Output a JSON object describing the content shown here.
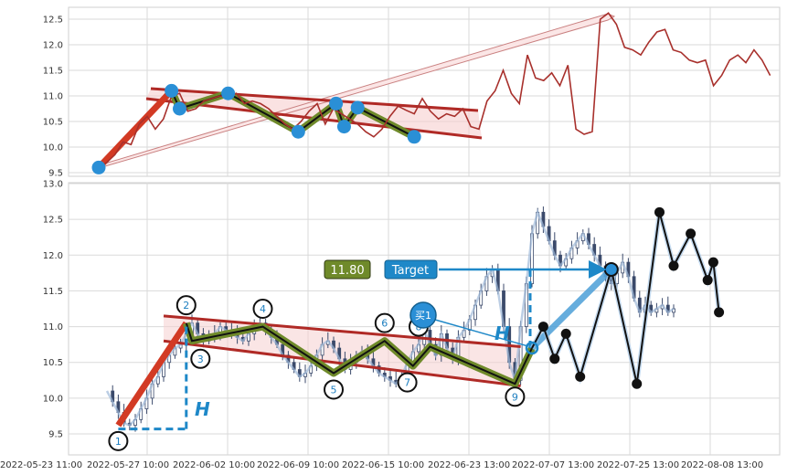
{
  "chart_data": [
    {
      "type": "line",
      "panel": "top",
      "ylim": [
        9.45,
        12.65
      ],
      "y_ticks": [
        "9.5",
        "10.0",
        "10.5",
        "11.0",
        "11.5",
        "12.0",
        "12.5"
      ],
      "grid": true,
      "series_color": "#a8302c",
      "series": [
        {
          "x": [
            0,
            3,
            6,
            9,
            12,
            15,
            18,
            21,
            24,
            27,
            30,
            33,
            36,
            39,
            42,
            45,
            48,
            51,
            54,
            57,
            60,
            63,
            66,
            69,
            72,
            75,
            78,
            81,
            84,
            87,
            90,
            93,
            96,
            99,
            102,
            105,
            108,
            111,
            114,
            117,
            120,
            123,
            126,
            129,
            132,
            135,
            138,
            141,
            144,
            147,
            150,
            153,
            156,
            159,
            162,
            165,
            168,
            171,
            174,
            177,
            180,
            183,
            186,
            189,
            192,
            195,
            198,
            201,
            204,
            207,
            210,
            213,
            216,
            219,
            222,
            225,
            228,
            231,
            234,
            237,
            240,
            243,
            246,
            249
          ],
          "values": [
            9.6,
            9.7,
            9.85,
            10.1,
            10.05,
            10.45,
            10.6,
            10.35,
            10.55,
            11.0,
            11.05,
            10.7,
            10.75,
            10.9,
            10.95,
            11.0,
            10.95,
            11.05,
            10.85,
            10.9,
            10.85,
            10.75,
            10.6,
            10.45,
            10.35,
            10.5,
            10.7,
            10.85,
            10.45,
            10.75,
            10.65,
            10.55,
            10.45,
            10.3,
            10.2,
            10.35,
            10.6,
            10.8,
            10.72,
            10.65,
            10.95,
            10.7,
            10.55,
            10.65,
            10.6,
            10.75,
            10.4,
            10.35,
            10.9,
            11.1,
            11.5,
            11.05,
            10.85,
            11.8,
            11.35,
            11.3,
            11.45,
            11.2,
            11.6,
            10.35,
            10.25,
            10.3,
            12.5,
            12.62,
            12.4,
            11.95,
            11.9,
            11.8,
            12.05,
            12.25,
            12.3,
            11.9,
            11.85,
            11.7,
            11.65,
            11.7,
            11.2,
            11.4,
            11.7,
            11.8,
            11.65,
            11.9,
            11.7,
            11.4
          ]
        }
      ],
      "markers": [
        {
          "x": 0,
          "y": 9.6
        },
        {
          "x": 27,
          "y": 11.1
        },
        {
          "x": 30,
          "y": 10.75
        },
        {
          "x": 48,
          "y": 11.05
        },
        {
          "x": 74,
          "y": 10.3
        },
        {
          "x": 88,
          "y": 10.85
        },
        {
          "x": 91,
          "y": 10.4
        },
        {
          "x": 96,
          "y": 10.77
        },
        {
          "x": 117,
          "y": 10.2
        }
      ]
    },
    {
      "type": "candlestick",
      "panel": "bottom",
      "ylim": [
        9.3,
        13.0
      ],
      "y_ticks": [
        "9.5",
        "10.0",
        "10.5",
        "11.0",
        "11.5",
        "12.0",
        "12.5",
        "13.0"
      ],
      "x_ticks": [
        "2022-05-23 11:00",
        "2022-05-27 10:00",
        "2022-06-02 10:00",
        "2022-06-09 10:00",
        "2022-06-15 10:00",
        "2022-06-23 13:00",
        "2022-07-07 13:00",
        "2022-07-25 13:00",
        "2022-08-08 13:00"
      ],
      "grid": true,
      "close_line": {
        "x": [
          0,
          2,
          4,
          6,
          8,
          10,
          12,
          14,
          16,
          18,
          20,
          22,
          24,
          26,
          28,
          30,
          32,
          34,
          36,
          38,
          40,
          42,
          44,
          46,
          48,
          50,
          52,
          54,
          56,
          58,
          60,
          62,
          64,
          66,
          68,
          70,
          72,
          74,
          76,
          78,
          80,
          82,
          84,
          86,
          88,
          90,
          92,
          94,
          96,
          98,
          100,
          102,
          104,
          106,
          108,
          110,
          112,
          114,
          116,
          118,
          120,
          122,
          124,
          126,
          128,
          130,
          132,
          134,
          136,
          138,
          140,
          142,
          144,
          146,
          148,
          150,
          152,
          154,
          156,
          158,
          160,
          162,
          164,
          166,
          168,
          170,
          172,
          174,
          176,
          178,
          180,
          182,
          184,
          186,
          188,
          190,
          192,
          194,
          196,
          198,
          200
        ],
        "values": [
          10.1,
          9.95,
          9.8,
          9.65,
          9.62,
          9.7,
          9.85,
          10.0,
          10.2,
          10.3,
          10.5,
          10.6,
          10.7,
          10.75,
          10.9,
          11.05,
          10.9,
          10.8,
          10.85,
          10.9,
          11.0,
          10.95,
          10.9,
          10.85,
          10.8,
          10.9,
          11.0,
          11.05,
          10.95,
          10.85,
          10.75,
          10.6,
          10.5,
          10.4,
          10.3,
          10.35,
          10.45,
          10.6,
          10.75,
          10.8,
          10.7,
          10.55,
          10.4,
          10.5,
          10.6,
          10.65,
          10.55,
          10.45,
          10.35,
          10.3,
          10.25,
          10.2,
          10.3,
          10.5,
          10.65,
          10.75,
          10.95,
          10.75,
          10.6,
          10.9,
          10.7,
          10.55,
          10.85,
          10.95,
          11.1,
          11.3,
          11.5,
          11.7,
          11.8,
          11.5,
          11.0,
          10.5,
          10.25,
          11.0,
          11.6,
          12.3,
          12.6,
          12.4,
          12.2,
          12.0,
          11.85,
          11.95,
          12.1,
          12.2,
          12.3,
          12.15,
          12.0,
          11.85,
          11.7,
          11.6,
          11.75,
          11.9,
          11.7,
          11.4,
          11.2,
          11.3,
          11.2,
          11.25,
          11.3,
          11.2,
          11.25
        ]
      },
      "legs_red": [
        {
          "x": 4,
          "y": 9.62
        },
        {
          "x": 28,
          "y": 11.05
        }
      ],
      "channel": {
        "upper": [
          {
            "x": 20,
            "y": 11.15
          },
          {
            "x": 146,
            "y": 10.72
          }
        ],
        "lower": [
          {
            "x": 20,
            "y": 10.8
          },
          {
            "x": 146,
            "y": 10.17
          }
        ]
      },
      "wave": [
        {
          "x": 28,
          "y": 11.05
        },
        {
          "x": 30,
          "y": 10.8
        },
        {
          "x": 55,
          "y": 11.0
        },
        {
          "x": 80,
          "y": 10.35
        },
        {
          "x": 98,
          "y": 10.8
        },
        {
          "x": 108,
          "y": 10.45
        },
        {
          "x": 114,
          "y": 10.72
        },
        {
          "x": 144,
          "y": 10.2
        },
        {
          "x": 150,
          "y": 10.7
        }
      ],
      "points": [
        {
          "label": "1",
          "x": 4,
          "y": 9.62,
          "lx": 4,
          "ly": 9.4
        },
        {
          "label": "2",
          "x": 28,
          "y": 11.05,
          "lx": 28,
          "ly": 11.3
        },
        {
          "label": "3",
          "x": 30,
          "y": 10.8,
          "lx": 33,
          "ly": 10.55
        },
        {
          "label": "4",
          "x": 55,
          "y": 11.0,
          "lx": 55,
          "ly": 11.25
        },
        {
          "label": "5",
          "x": 80,
          "y": 10.35,
          "lx": 80,
          "ly": 10.12
        },
        {
          "label": "6",
          "x": 98,
          "y": 10.8,
          "lx": 98,
          "ly": 11.05
        },
        {
          "label": "7",
          "x": 108,
          "y": 10.45,
          "lx": 106,
          "ly": 10.22
        },
        {
          "label": "8",
          "x": 114,
          "y": 10.72,
          "lx": 110,
          "ly": 11.0
        },
        {
          "label": "9",
          "x": 144,
          "y": 10.2,
          "lx": 144,
          "ly": 10.02
        }
      ],
      "forecast": [
        {
          "x": 150,
          "y": 10.7
        },
        {
          "x": 178,
          "y": 11.8
        }
      ],
      "black_path": [
        {
          "x": 150,
          "y": 10.7
        },
        {
          "x": 154,
          "y": 11.0
        },
        {
          "x": 158,
          "y": 10.55
        },
        {
          "x": 162,
          "y": 10.9
        },
        {
          "x": 167,
          "y": 10.3
        },
        {
          "x": 178,
          "y": 11.8
        },
        {
          "x": 187,
          "y": 10.2
        },
        {
          "x": 195,
          "y": 12.6
        },
        {
          "x": 200,
          "y": 11.85
        },
        {
          "x": 206,
          "y": 12.3
        },
        {
          "x": 212,
          "y": 11.65
        },
        {
          "x": 214,
          "y": 11.9
        },
        {
          "x": 216,
          "y": 11.2
        }
      ],
      "annotations": {
        "price_box": "11.80",
        "target_label": "Target",
        "buy_label": "买1",
        "h_label": "H",
        "h_label_2": "H"
      }
    }
  ]
}
